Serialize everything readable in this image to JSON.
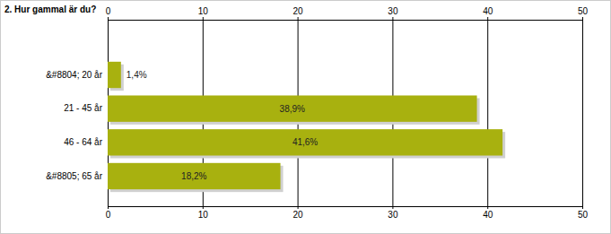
{
  "chart_data": {
    "type": "bar",
    "title": "2. Hur gammal är du?",
    "orientation": "horizontal",
    "categories": [
      "&#8804; 20 år",
      "21 - 45 år",
      "46 - 64 år",
      "&#8805; 65 år"
    ],
    "values": [
      1.4,
      38.9,
      41.6,
      18.2
    ],
    "value_labels": [
      "1,4%",
      "38,9%",
      "41,6%",
      "18,2%"
    ],
    "data_labels": true,
    "color": "#a8b10f",
    "xlim": [
      0,
      50
    ],
    "xticks": [
      0,
      10,
      20,
      30,
      40,
      50
    ],
    "grid": true
  }
}
